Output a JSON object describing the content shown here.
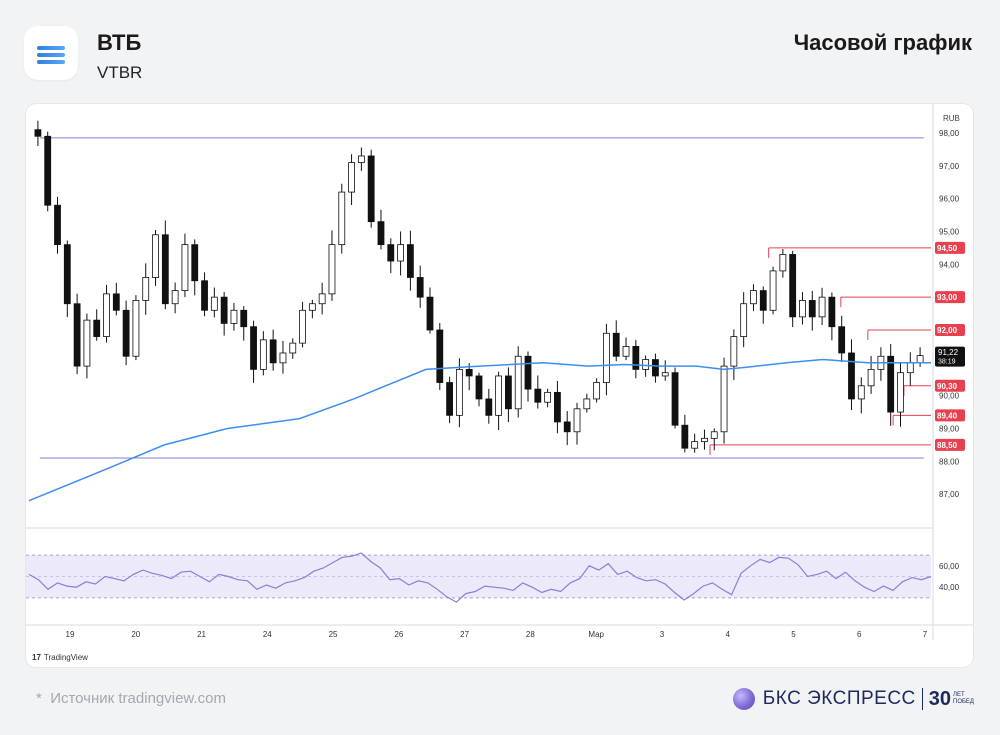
{
  "header": {
    "ticker": "ВТБ",
    "code": "VTBR",
    "title": "Часовой график",
    "logo_icon": "stacked-lines-icon"
  },
  "chart_data": {
    "type": "candlestick",
    "currency_label": "RUB",
    "ylim": [
      86.0,
      98.7
    ],
    "y_ticks": [
      "98,00",
      "97,00",
      "96,00",
      "95,00",
      "94,00",
      "93,00",
      "92,00",
      "91,00",
      "90,00",
      "89,00",
      "88,00",
      "87,00"
    ],
    "x_ticks": [
      "19",
      "20",
      "21",
      "24",
      "25",
      "26",
      "27",
      "28",
      "Мар",
      "3",
      "4",
      "5",
      "6",
      "7"
    ],
    "close_path": [
      97.9,
      95.8,
      94.6,
      92.8,
      90.9,
      92.3,
      91.8,
      93.1,
      92.6,
      91.2,
      92.9,
      93.6,
      94.9,
      92.8,
      93.2,
      94.6,
      93.5,
      92.6,
      93.0,
      92.2,
      92.6,
      92.1,
      90.8,
      91.7,
      91.0,
      91.3,
      91.6,
      92.6,
      92.8,
      93.1,
      94.6,
      96.2,
      97.1,
      97.3,
      95.3,
      94.6,
      94.1,
      94.6,
      93.6,
      93.0,
      92.0,
      90.4,
      89.4,
      90.8,
      90.6,
      89.9,
      89.4,
      90.6,
      89.6,
      91.2,
      90.2,
      89.8,
      90.1,
      89.2,
      88.9,
      89.6,
      89.9,
      90.4,
      91.9,
      91.2,
      91.5,
      90.8,
      91.1,
      90.6,
      90.7,
      89.1,
      88.4,
      88.6,
      88.7,
      88.9,
      90.9,
      91.8,
      92.8,
      93.2,
      92.6,
      93.8,
      94.3,
      92.4,
      92.9,
      92.4,
      93.0,
      92.1,
      91.3,
      89.9,
      90.3,
      90.8,
      91.2,
      89.5,
      90.7,
      91.0,
      91.22
    ],
    "ma_points": [
      [
        0,
        86.8
      ],
      [
        0.08,
        87.7
      ],
      [
        0.15,
        88.5
      ],
      [
        0.22,
        89.0
      ],
      [
        0.3,
        89.3
      ],
      [
        0.36,
        89.9
      ],
      [
        0.44,
        90.8
      ],
      [
        0.5,
        90.9
      ],
      [
        0.57,
        91.0
      ],
      [
        0.62,
        90.9
      ],
      [
        0.66,
        90.95
      ],
      [
        0.7,
        90.9
      ],
      [
        0.74,
        90.9
      ],
      [
        0.77,
        90.8
      ],
      [
        0.79,
        90.85
      ],
      [
        0.84,
        91.0
      ],
      [
        0.88,
        91.1
      ],
      [
        0.93,
        91.0
      ],
      [
        1.0,
        91.0
      ]
    ],
    "ma_color": "#3d8ef0",
    "support_line": 88.1,
    "resistance_line": 97.85,
    "levels": [
      {
        "label": "94,50",
        "value": 94.5,
        "from": 0.82
      },
      {
        "label": "93,00",
        "value": 93.0,
        "from": 0.9
      },
      {
        "label": "92,00",
        "value": 92.0,
        "from": 0.93
      },
      {
        "label": "90,30",
        "value": 90.3,
        "from": 0.97
      },
      {
        "label": "89,40",
        "value": 89.4,
        "from": 0.958
      },
      {
        "label": "88,50",
        "value": 88.5,
        "from": 0.755
      }
    ],
    "current_price": {
      "price": "91,22",
      "time": "38:19"
    },
    "rsi": {
      "y_ticks": [
        "60,00",
        "40,00"
      ],
      "band": [
        30,
        70
      ],
      "mid": 50,
      "values": [
        52,
        47,
        38,
        44,
        41,
        40,
        45,
        43,
        50,
        48,
        46,
        52,
        56,
        53,
        51,
        48,
        54,
        55,
        50,
        45,
        52,
        50,
        47,
        46,
        38,
        42,
        39,
        44,
        46,
        49,
        55,
        58,
        63,
        68,
        69,
        72,
        64,
        58,
        47,
        48,
        42,
        46,
        44,
        38,
        31,
        26,
        34,
        36,
        41,
        40,
        39,
        37,
        44,
        40,
        35,
        38,
        36,
        44,
        48,
        60,
        56,
        62,
        52,
        55,
        49,
        46,
        47,
        43,
        35,
        28,
        34,
        41,
        44,
        38,
        33,
        53,
        60,
        66,
        63,
        68,
        67,
        61,
        50,
        52,
        55,
        48,
        54,
        46,
        40,
        36,
        41,
        37,
        45,
        49,
        47,
        50
      ],
      "color": "#8a7fd6"
    },
    "colors": {
      "up": "#ffffff",
      "down": "#111111",
      "level": "#e8404f",
      "range": "#8a7fd6"
    },
    "source_brand": "TradingView"
  },
  "footer": {
    "source": "Источник tradingview.com",
    "source_mark": "*",
    "brand": "БКС ЭКСПРЕСС",
    "years": "30",
    "years_sub_1": "ЛЕТ",
    "years_sub_2": "ПОБЕД"
  }
}
